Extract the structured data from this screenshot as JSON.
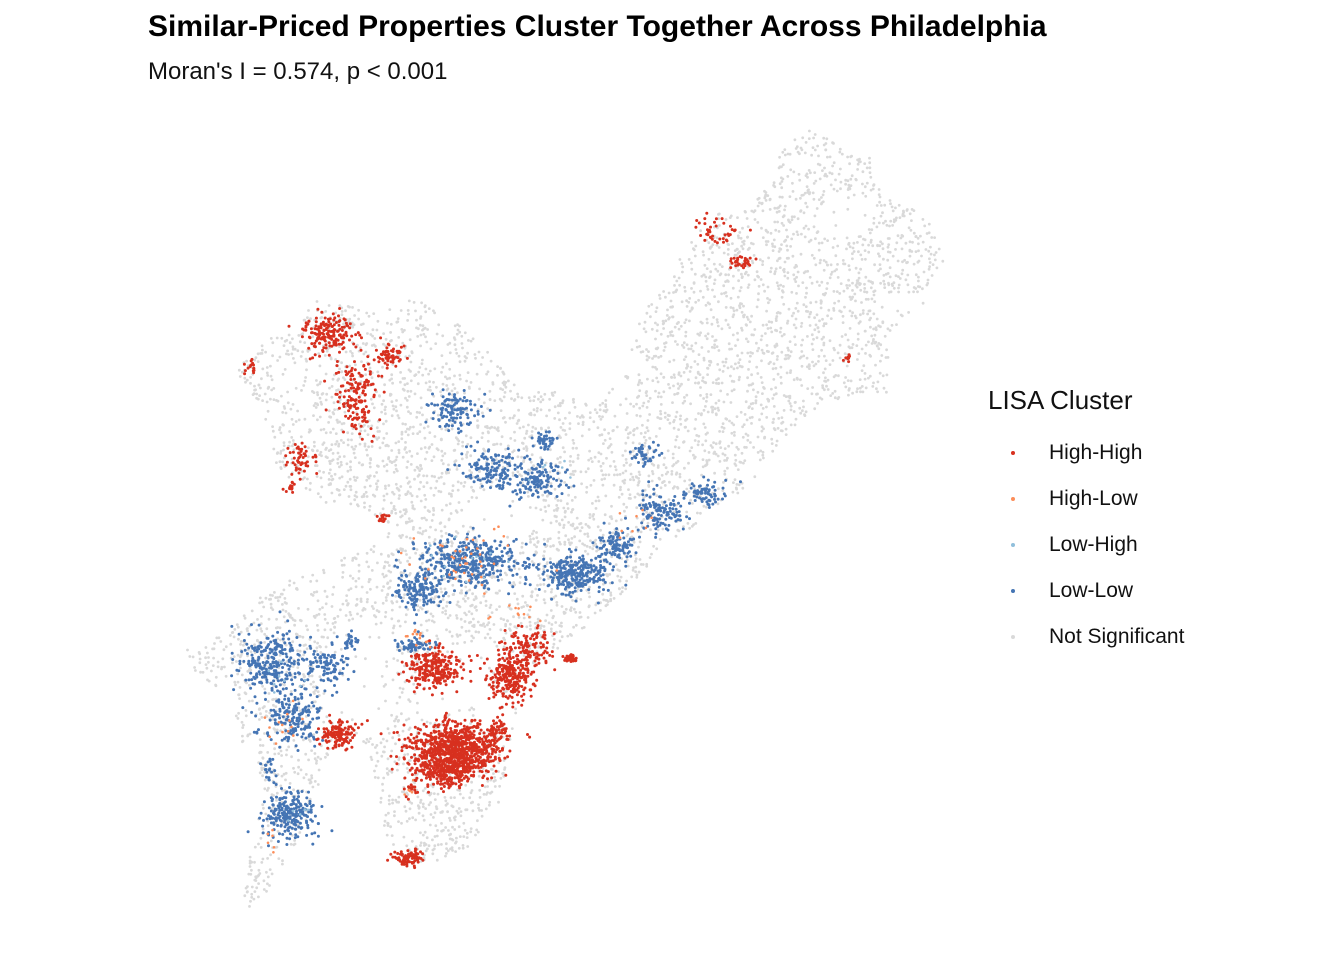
{
  "title": "Similar-Priced Properties Cluster Together Across Philadelphia",
  "subtitle": "Moran's I = 0.574, p < 0.001",
  "legend": {
    "title": "LISA Cluster",
    "items": [
      {
        "label": "High-High",
        "color": "#d7301f"
      },
      {
        "label": "High-Low",
        "color": "#fc8d59"
      },
      {
        "label": "Low-High",
        "color": "#91bfdb"
      },
      {
        "label": "Low-Low",
        "color": "#4575b4"
      },
      {
        "label": "Not Significant",
        "color": "#d9d9d9"
      }
    ]
  }
}
